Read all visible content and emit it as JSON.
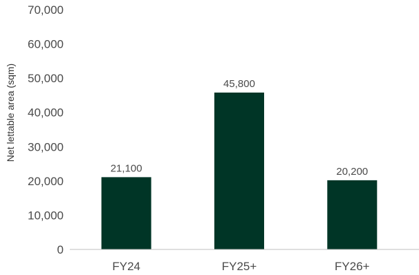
{
  "chart_data": {
    "type": "bar",
    "categories": [
      "FY24",
      "FY25+",
      "FY26+"
    ],
    "values": [
      21100,
      45800,
      20200
    ],
    "data_labels": [
      "21,100",
      "45,800",
      "20,200"
    ],
    "ylabel": "Net lettable area (sqm)",
    "xlabel": "",
    "ylim": [
      0,
      70000
    ],
    "yticks": [
      0,
      10000,
      20000,
      30000,
      40000,
      50000,
      60000,
      70000
    ],
    "ytick_labels": [
      "0",
      "10,000",
      "20,000",
      "30,000",
      "40,000",
      "50,000",
      "60,000",
      "70,000"
    ],
    "grid": false,
    "bar_color": "#003526",
    "axis_color": "#bfbfbf"
  }
}
